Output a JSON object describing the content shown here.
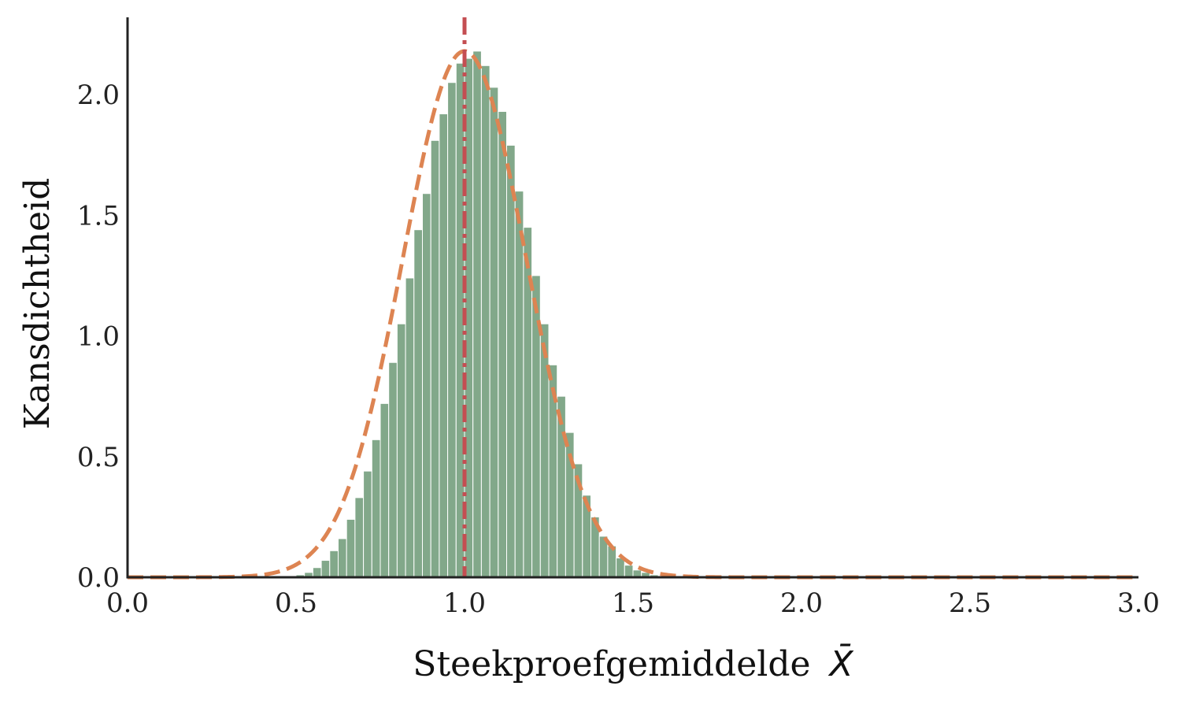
{
  "chart_data": {
    "type": "bar",
    "xlabel_text": "Steekproefgemiddelde",
    "xlabel_symbol": "X̄",
    "ylabel": "Kansdichtheid",
    "xlim": [
      0.0,
      3.0
    ],
    "ylim": [
      0.0,
      2.32
    ],
    "xticks": [
      "0.0",
      "0.5",
      "1.0",
      "1.5",
      "2.0",
      "2.5",
      "3.0"
    ],
    "yticks": [
      "0.0",
      "0.5",
      "1.0",
      "1.5",
      "2.0"
    ],
    "grid": false,
    "histogram": {
      "color": "#82a88a",
      "bin_width": 0.025,
      "bin_starts": [
        0.475,
        0.5,
        0.525,
        0.55,
        0.575,
        0.6,
        0.625,
        0.65,
        0.675,
        0.7,
        0.725,
        0.75,
        0.775,
        0.8,
        0.825,
        0.85,
        0.875,
        0.9,
        0.925,
        0.95,
        0.975,
        1.0,
        1.025,
        1.05,
        1.075,
        1.1,
        1.125,
        1.15,
        1.175,
        1.2,
        1.225,
        1.25,
        1.275,
        1.3,
        1.325,
        1.35,
        1.375,
        1.4,
        1.425,
        1.45,
        1.475,
        1.5,
        1.525,
        1.55,
        1.575,
        1.6,
        1.625
      ],
      "densities": [
        0.005,
        0.01,
        0.02,
        0.04,
        0.07,
        0.11,
        0.16,
        0.24,
        0.33,
        0.44,
        0.57,
        0.72,
        0.89,
        1.05,
        1.24,
        1.44,
        1.59,
        1.81,
        1.92,
        2.05,
        2.13,
        2.15,
        2.18,
        2.12,
        2.03,
        1.93,
        1.79,
        1.6,
        1.45,
        1.25,
        1.05,
        0.88,
        0.75,
        0.6,
        0.47,
        0.34,
        0.25,
        0.17,
        0.13,
        0.08,
        0.05,
        0.03,
        0.02,
        0.01,
        0.005,
        0.003,
        0.002
      ]
    },
    "curve": {
      "color": "#dd8452",
      "style": "dashed",
      "mean": 1.0,
      "std": 0.183
    },
    "mean_line": {
      "x": 1.0,
      "color": "#c44e52",
      "style": "dash-dot"
    }
  }
}
